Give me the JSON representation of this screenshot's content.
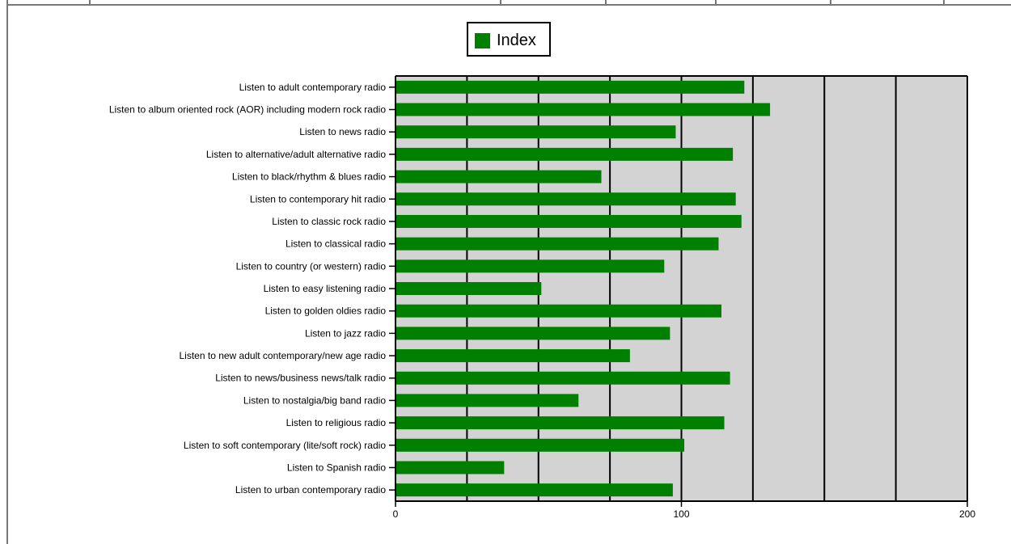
{
  "colors": {
    "bar": "#008000",
    "plot_bg": "#d3d3d3",
    "grid": "#000000",
    "frame": "#777777"
  },
  "legend": {
    "label": "Index"
  },
  "chart_data": {
    "type": "bar",
    "orientation": "horizontal",
    "title": "",
    "xlabel": "",
    "ylabel": "",
    "xlim": [
      0,
      200
    ],
    "x_ticks": [
      0,
      100,
      200
    ],
    "gridlines": [
      25,
      50,
      75,
      100,
      125,
      150,
      175
    ],
    "grid": true,
    "legend_position": "top-center",
    "categories": [
      "Listen to adult contemporary radio",
      "Listen to album oriented rock (AOR) including modern rock radio",
      "Listen to news radio",
      "Listen to alternative/adult alternative radio",
      "Listen to black/rhythm & blues radio",
      "Listen to contemporary hit radio",
      "Listen to classic rock radio",
      "Listen to classical radio",
      "Listen to country (or western) radio",
      "Listen to easy listening radio",
      "Listen to golden oldies radio",
      "Listen to jazz radio",
      "Listen to new adult contemporary/new age radio",
      "Listen to news/business news/talk radio",
      "Listen to nostalgia/big band radio",
      "Listen to religious radio",
      "Listen to soft contemporary (lite/soft rock) radio",
      "Listen to Spanish radio",
      "Listen to urban contemporary radio"
    ],
    "series": [
      {
        "name": "Index",
        "values": [
          122,
          131,
          98,
          118,
          72,
          119,
          121,
          113,
          94,
          51,
          114,
          96,
          82,
          117,
          64,
          115,
          101,
          38,
          97
        ]
      }
    ]
  }
}
